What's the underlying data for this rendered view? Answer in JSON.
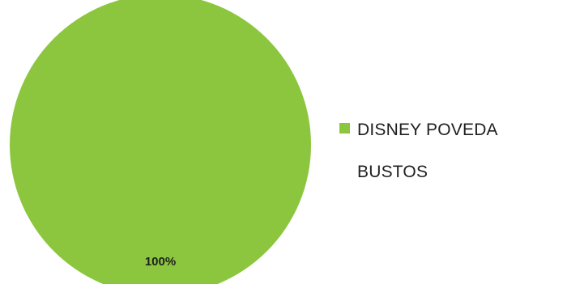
{
  "chart_data": {
    "type": "pie",
    "categories": [
      "DISNEY POVEDA BUSTOS"
    ],
    "values": [
      100
    ],
    "data_labels": [
      "100%"
    ],
    "colors": [
      "#8cc63f"
    ],
    "legend": {
      "placement": "right",
      "entries": [
        {
          "lines": [
            "DISNEY POVEDA",
            "BUSTOS"
          ],
          "color": "#8cc63f"
        }
      ]
    }
  }
}
